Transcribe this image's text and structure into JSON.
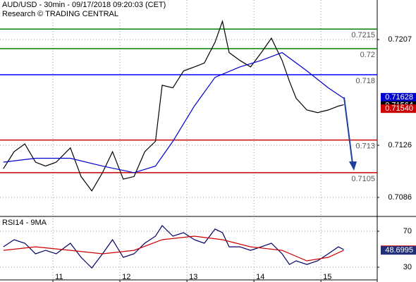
{
  "chart_data": [
    {
      "type": "line",
      "title": "AUD/USD - 30min - 09/17/2018 09:20:03 (CET)",
      "subtitle": "Research © TRADING CENTRAL",
      "xlim": [
        10.21,
        15.84
      ],
      "ylim": [
        0.70725,
        0.72373
      ],
      "yticks": [
        0.7207,
        0.7126,
        0.7086
      ],
      "grid": true,
      "series": [
        {
          "color": "#000000",
          "x": [
            10.26,
            10.42,
            10.58,
            10.74,
            10.89,
            11.05,
            11.26,
            11.42,
            11.58,
            11.74,
            11.89,
            12.05,
            12.21,
            12.37,
            12.53,
            12.63,
            12.79,
            12.95,
            13.11,
            13.26,
            13.42,
            13.53,
            13.63,
            13.79,
            13.95,
            14.11,
            14.26,
            14.42,
            14.53,
            14.63,
            14.79,
            14.95,
            15.11,
            15.26,
            15.34
          ],
          "values": [
            0.7108,
            0.7121,
            0.7127,
            0.7113,
            0.711,
            0.7113,
            0.7124,
            0.7102,
            0.7091,
            0.7105,
            0.7121,
            0.71,
            0.7102,
            0.7121,
            0.7129,
            0.7172,
            0.717,
            0.7183,
            0.7186,
            0.7189,
            0.7205,
            0.7221,
            0.7197,
            0.7191,
            0.7186,
            0.7197,
            0.7208,
            0.7191,
            0.7175,
            0.7162,
            0.7153,
            0.7151,
            0.7153,
            0.7156,
            0.7157
          ]
        },
        {
          "color": "#0000cc",
          "x": [
            10.26,
            10.74,
            11.26,
            11.74,
            12.21,
            12.53,
            12.79,
            13.11,
            13.42,
            13.79,
            14.11,
            14.42,
            14.79,
            15.11,
            15.34
          ],
          "values": [
            0.7113,
            0.7116,
            0.7116,
            0.711,
            0.7105,
            0.711,
            0.7129,
            0.7156,
            0.7178,
            0.7186,
            0.7191,
            0.7197,
            0.7183,
            0.717,
            0.7162
          ]
        }
      ],
      "levels": [
        {
          "value": 0.7215,
          "color": "#008000"
        },
        {
          "value": 0.72,
          "color": "#008000"
        },
        {
          "value": 0.718,
          "color": "#0000ff"
        },
        {
          "value": 0.713,
          "color": "#cc0000"
        },
        {
          "value": 0.7105,
          "color": "#cc0000"
        }
      ],
      "markers": [
        {
          "value": 0.71628,
          "color": "#0000cc"
        },
        {
          "value": 0.71564,
          "color": "#000000"
        },
        {
          "value": 0.7154,
          "label": "0.71540",
          "color": "#cc0000"
        }
      ]
    },
    {
      "type": "line",
      "title": "RSI14 - 9MA",
      "xlim": [
        10.21,
        15.84
      ],
      "xticks": [
        11,
        12,
        13,
        14,
        15
      ],
      "ylim": [
        17.5,
        84.1
      ],
      "yticks": [
        70,
        30
      ],
      "grid": true,
      "series": [
        {
          "color": "#000066",
          "x": [
            10.26,
            10.42,
            10.58,
            10.74,
            10.89,
            11.05,
            11.26,
            11.42,
            11.58,
            11.74,
            11.89,
            12.05,
            12.21,
            12.37,
            12.53,
            12.63,
            12.79,
            12.95,
            13.11,
            13.26,
            13.42,
            13.53,
            13.63,
            13.79,
            13.95,
            14.11,
            14.26,
            14.42,
            14.53,
            14.63,
            14.79,
            14.95,
            15.11,
            15.26,
            15.34
          ],
          "values": [
            52.7,
            60.6,
            56.7,
            44.9,
            48.8,
            44.9,
            56.7,
            41,
            29.2,
            44.9,
            60.6,
            41,
            44.9,
            56.7,
            64.5,
            76.3,
            64.5,
            68.4,
            60.6,
            56.7,
            72.4,
            68.4,
            52.7,
            52.7,
            48.8,
            52.7,
            56.7,
            44.9,
            33.1,
            37.1,
            33.1,
            37.1,
            44.9,
            52.7,
            49.6
          ]
        },
        {
          "color": "#cc0000",
          "x": [
            10.26,
            10.74,
            11.26,
            11.74,
            12.21,
            12.63,
            13.11,
            13.53,
            13.95,
            14.42,
            14.79,
            15.11,
            15.34
          ],
          "values": [
            48.8,
            52.7,
            48.8,
            44.9,
            48.8,
            60.6,
            64.5,
            60.6,
            52.7,
            48.8,
            37.1,
            41,
            48.8
          ]
        }
      ],
      "markers": [
        {
          "value": 49.3955,
          "color": "#cc0000"
        },
        {
          "value": 48.6995,
          "color": "#1f2f7a"
        }
      ]
    }
  ]
}
